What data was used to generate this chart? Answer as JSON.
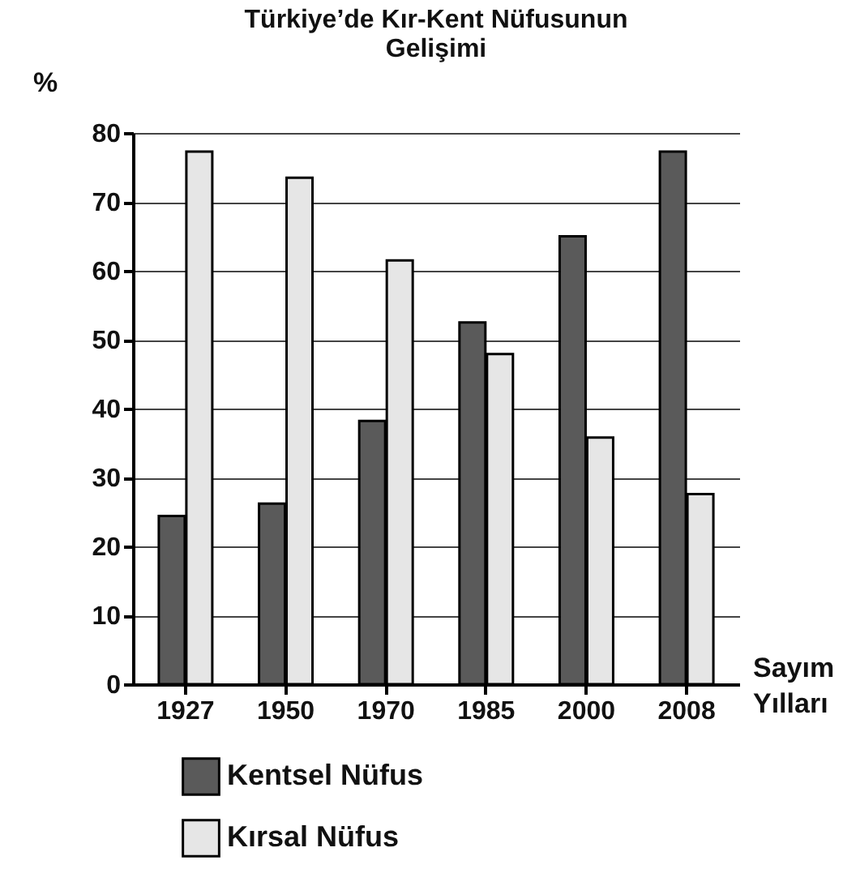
{
  "chart_data": {
    "type": "bar",
    "title": "Türkiye’de Kır-Kent Nüfusunun Gelişimi",
    "xlabel": "Sayım Yılları",
    "ylabel": "%",
    "categories": [
      "1927",
      "1950",
      "1970",
      "1985",
      "2000",
      "2008"
    ],
    "series": [
      {
        "name": "Kentsel Nüfus",
        "color": "#5a5a5a",
        "values": [
          24.4,
          26.2,
          38.2,
          52.5,
          65,
          77.3
        ]
      },
      {
        "name": "Kırsal Nüfus",
        "color": "#e6e6e6",
        "values": [
          77.3,
          73.5,
          61.5,
          47.9,
          35.8,
          27.6
        ]
      }
    ],
    "ylim": [
      0,
      80
    ],
    "yticks": [
      0,
      10,
      20,
      30,
      40,
      50,
      60,
      70,
      80
    ],
    "grid": "y",
    "legend": "bottom left"
  }
}
